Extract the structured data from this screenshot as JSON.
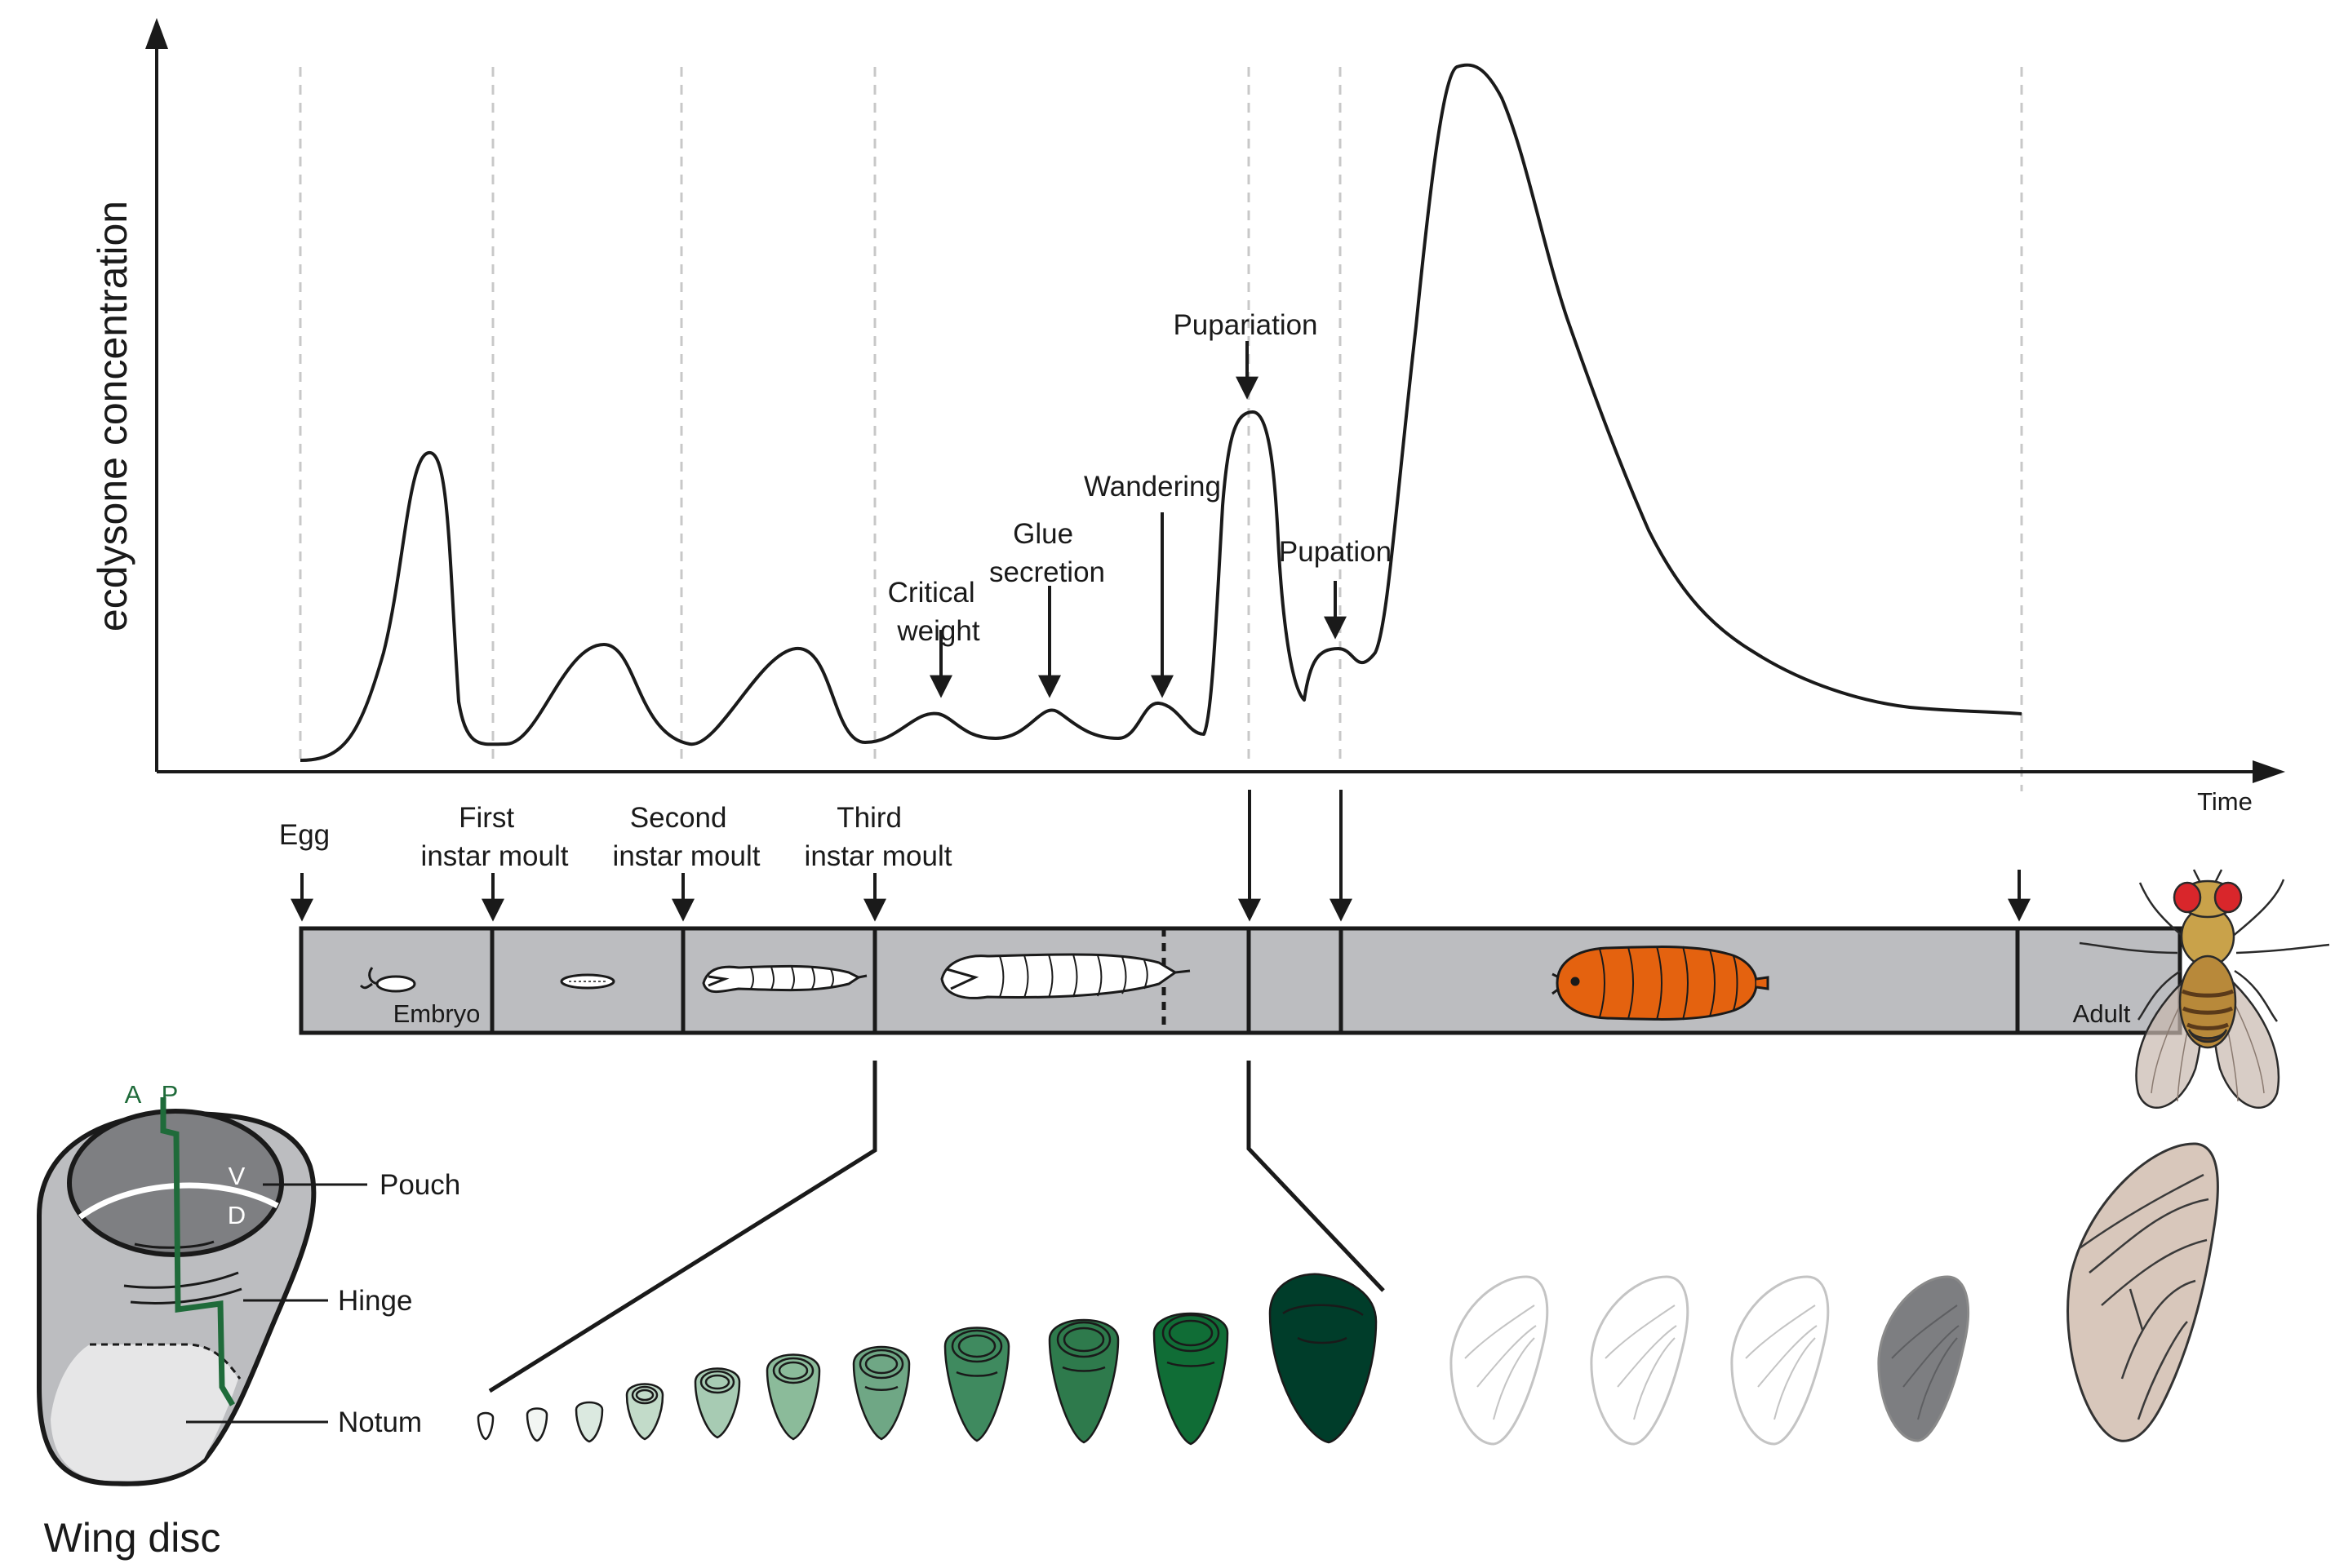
{
  "chart": {
    "ylabel": "ecdysone concentration",
    "xlabel": "Time"
  },
  "events": {
    "critical_weight": [
      "Critical",
      "weight"
    ],
    "glue_secretion": [
      "Glue",
      "secretion"
    ],
    "wandering": "Wandering",
    "pupariation": "Pupariation",
    "pupation": "Pupation"
  },
  "stages": {
    "egg": "Egg",
    "first_moult": [
      "First",
      "instar moult"
    ],
    "second_moult": [
      "Second",
      "instar moult"
    ],
    "third_moult": [
      "Third",
      "instar moult"
    ],
    "embryo": "Embryo",
    "adult": "Adult"
  },
  "wing_disc": {
    "title": "Wing disc",
    "pouch": "Pouch",
    "hinge": "Hinge",
    "notum": "Notum",
    "anterior": "A",
    "posterior": "P",
    "ventral": "V",
    "dorsal": "D"
  },
  "colors": {
    "timeline_bar": "#bcbdc0",
    "pupa": "#e4620f",
    "disc_green_dark": "#003d2a",
    "ap_boundary": "#1f6b3a",
    "adult_wing": "#d8c7bb"
  }
}
